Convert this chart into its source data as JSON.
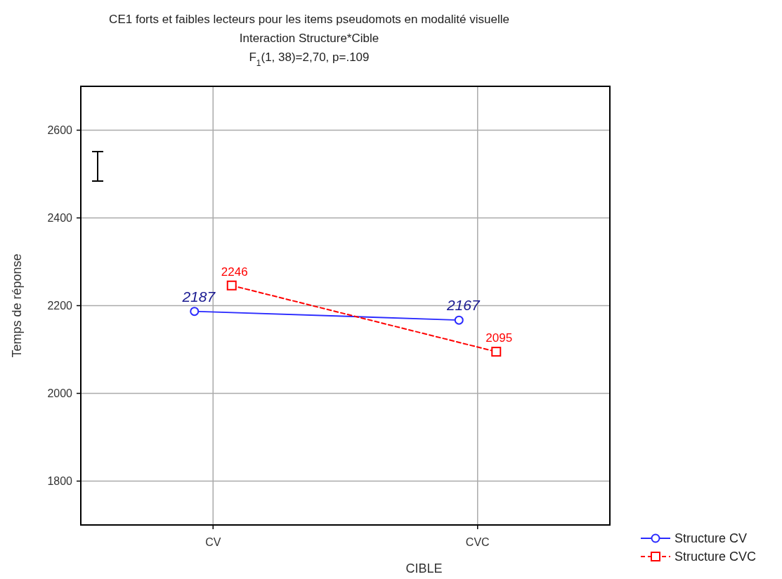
{
  "chart_data": {
    "type": "line",
    "title": "CE1 forts et faibles lecteurs pour les items pseudomots en modalité visuelle\nInteraction Structure*Cible\nF$_{1}$(1, 38)=2,70, p=.109",
    "xlabel": "CIBLE",
    "ylabel": "Temps de réponse",
    "categories": [
      "CV",
      "CVC"
    ],
    "series": [
      {
        "name": "Structure CV",
        "color": "#2a2aff",
        "values": [
          2187,
          2167
        ],
        "marker": "circle",
        "line_style": "solid"
      },
      {
        "name": "Structure CVC",
        "color": "#ff0000",
        "values": [
          2246,
          2095
        ],
        "marker": "square",
        "line_style": "dashed"
      }
    ],
    "ylim": [
      1700,
      2700
    ],
    "yticks": [
      1800,
      2000,
      2200,
      2400,
      2600
    ],
    "grid": true,
    "legend": "bottom right",
    "data_labels": true
  }
}
